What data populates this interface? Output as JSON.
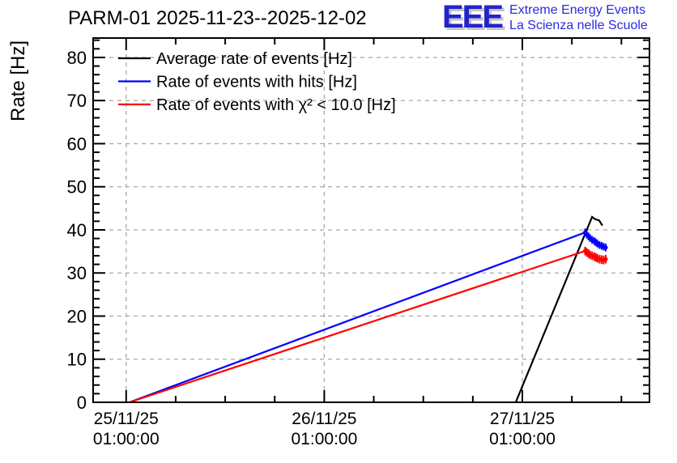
{
  "title": "PARM-01 2025-11-23--2025-12-02",
  "logo": {
    "letters": "EEE",
    "line1": "Extreme Energy Events",
    "line2": "La Scienza nelle Scuole",
    "letters_color": "#2323cc",
    "text_color": "#2a2ae0"
  },
  "chart_data": {
    "type": "line",
    "title": "PARM-01 2025-11-23--2025-12-02",
    "ylabel": "Rate [Hz]",
    "xlabel": "",
    "grid": "dashed",
    "grid_color": "#a8a8a8",
    "legend_position": "top-left-inside",
    "y_axis": {
      "title": "Rate [Hz]",
      "min": 0,
      "max": 84.5,
      "major_step": 10,
      "minor_step": 2,
      "labels": [
        "0",
        "10",
        "20",
        "30",
        "40",
        "50",
        "60",
        "70",
        "80"
      ]
    },
    "x_axis": {
      "unit_note": "hours since chart left edge (approx 2025-11-24 21:00)",
      "max_hours": 67.4,
      "minor_step_hours": 6,
      "majors": [
        {
          "h": 4,
          "date": "25/11/25",
          "time": "01:00:00"
        },
        {
          "h": 28,
          "date": "26/11/25",
          "time": "01:00:00"
        },
        {
          "h": 52,
          "date": "27/11/25",
          "time": "01:00:00"
        }
      ]
    },
    "series": [
      {
        "name": "Average rate of events [Hz]",
        "color": "#000000",
        "err": 0,
        "cluster_start": -1,
        "points": [
          [
            51.2,
            0
          ],
          [
            60.45,
            43.0
          ],
          [
            60.8,
            42.5
          ],
          [
            61.3,
            42.2
          ],
          [
            61.7,
            41.0
          ]
        ]
      },
      {
        "name": "Rate of events with hits [Hz]",
        "color": "#0000ff",
        "err": 0.9,
        "cluster_start": 1,
        "points": [
          [
            4.4,
            0
          ],
          [
            59.6,
            39.4
          ],
          [
            59.8,
            38.9
          ],
          [
            60.0,
            38.5
          ],
          [
            60.2,
            38.1
          ],
          [
            60.45,
            37.7
          ],
          [
            60.7,
            37.4
          ],
          [
            60.9,
            37.1
          ],
          [
            61.1,
            36.8
          ],
          [
            61.35,
            36.5
          ],
          [
            61.6,
            36.3
          ],
          [
            61.85,
            36.1
          ],
          [
            62.1,
            35.9
          ]
        ]
      },
      {
        "name": "Rate of events with χ² < 10.0 [Hz]",
        "color": "#ff0000",
        "err": 1.0,
        "cluster_start": 1,
        "points": [
          [
            4.4,
            0
          ],
          [
            59.6,
            35.1
          ],
          [
            59.8,
            34.8
          ],
          [
            60.0,
            34.5
          ],
          [
            60.2,
            34.2
          ],
          [
            60.45,
            34.0
          ],
          [
            60.7,
            33.8
          ],
          [
            60.9,
            33.6
          ],
          [
            61.1,
            33.4
          ],
          [
            61.35,
            33.2
          ],
          [
            61.6,
            33.1
          ],
          [
            61.85,
            33.0
          ],
          [
            62.1,
            33.2
          ]
        ]
      }
    ]
  }
}
